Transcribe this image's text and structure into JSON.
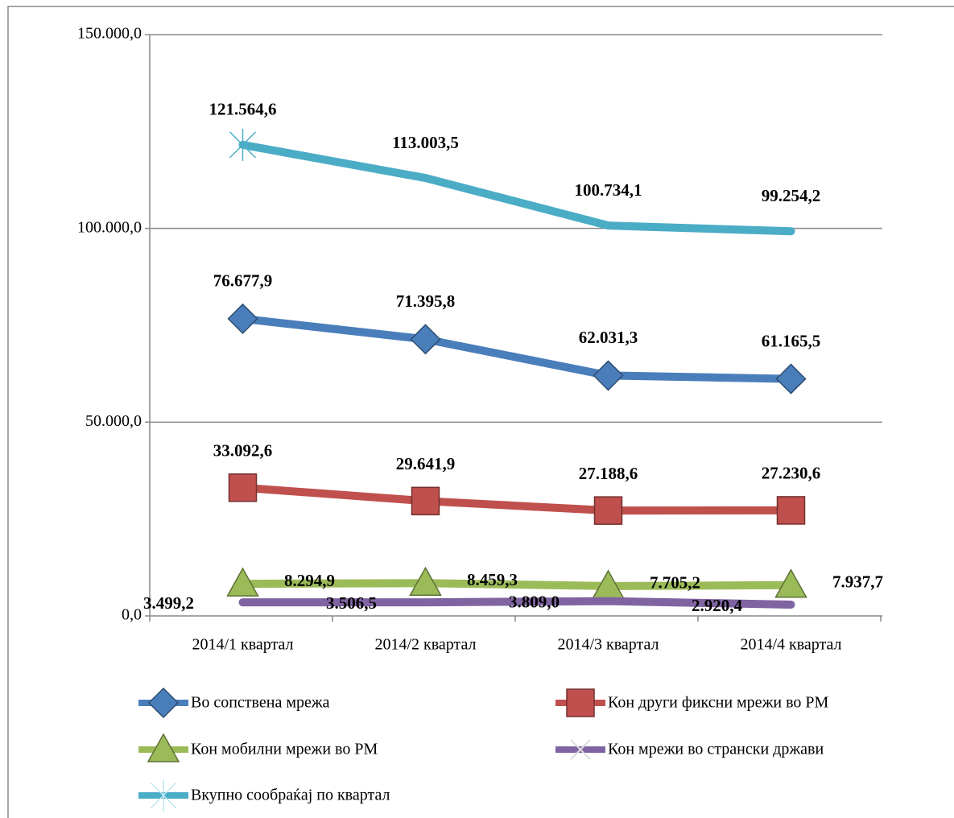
{
  "chart_data": {
    "type": "line",
    "categories": [
      "2014/1 квартал",
      "2014/2 квартал",
      "2014/3 квартал",
      "2014/4 квартал"
    ],
    "series": [
      {
        "name": "Во сопствена мрежа",
        "color": "#4a7ebb",
        "values": [
          76677.9,
          71395.8,
          62031.3,
          61165.5
        ],
        "value_labels": [
          "76.677,9",
          "71.395,8",
          "62.031,3",
          "61.165,5"
        ]
      },
      {
        "name": "Кон други фиксни мрежи во РМ",
        "color": "#c0504d",
        "values": [
          33092.6,
          29641.9,
          27188.6,
          27230.6
        ],
        "value_labels": [
          "33.092,6",
          "29.641,9",
          "27.188,6",
          "27.230,6"
        ]
      },
      {
        "name": "Кон мобилни мрежи во РМ",
        "color": "#9bbb59",
        "values": [
          8294.9,
          8459.3,
          7705.2,
          7937.7
        ],
        "value_labels": [
          "8.294,9",
          "8.459,3",
          "7.705,2",
          "7.937,7"
        ]
      },
      {
        "name": "Кон мрежи во странски држави",
        "color": "#8064a2",
        "values": [
          3499.2,
          3506.5,
          3809.0,
          2920.4
        ],
        "value_labels": [
          "3.499,2",
          "3.506,5",
          "3.809,0",
          "2.920,4"
        ]
      },
      {
        "name": "Вкупно сообраќај по квартал",
        "color": "#4bacc6",
        "values": [
          121564.6,
          113003.5,
          100734.1,
          99254.2
        ],
        "value_labels": [
          "121.564,6",
          "113.003,5",
          "100.734,1",
          "99.254,2"
        ]
      }
    ],
    "ylim": [
      0,
      150000
    ],
    "yticks": [
      {
        "value": 0,
        "label": "0,0"
      },
      {
        "value": 50000,
        "label": "50.000,0"
      },
      {
        "value": 100000,
        "label": "100.000,0"
      },
      {
        "value": 150000,
        "label": "150.000,0"
      }
    ],
    "grid": true,
    "legend": "bottom"
  }
}
